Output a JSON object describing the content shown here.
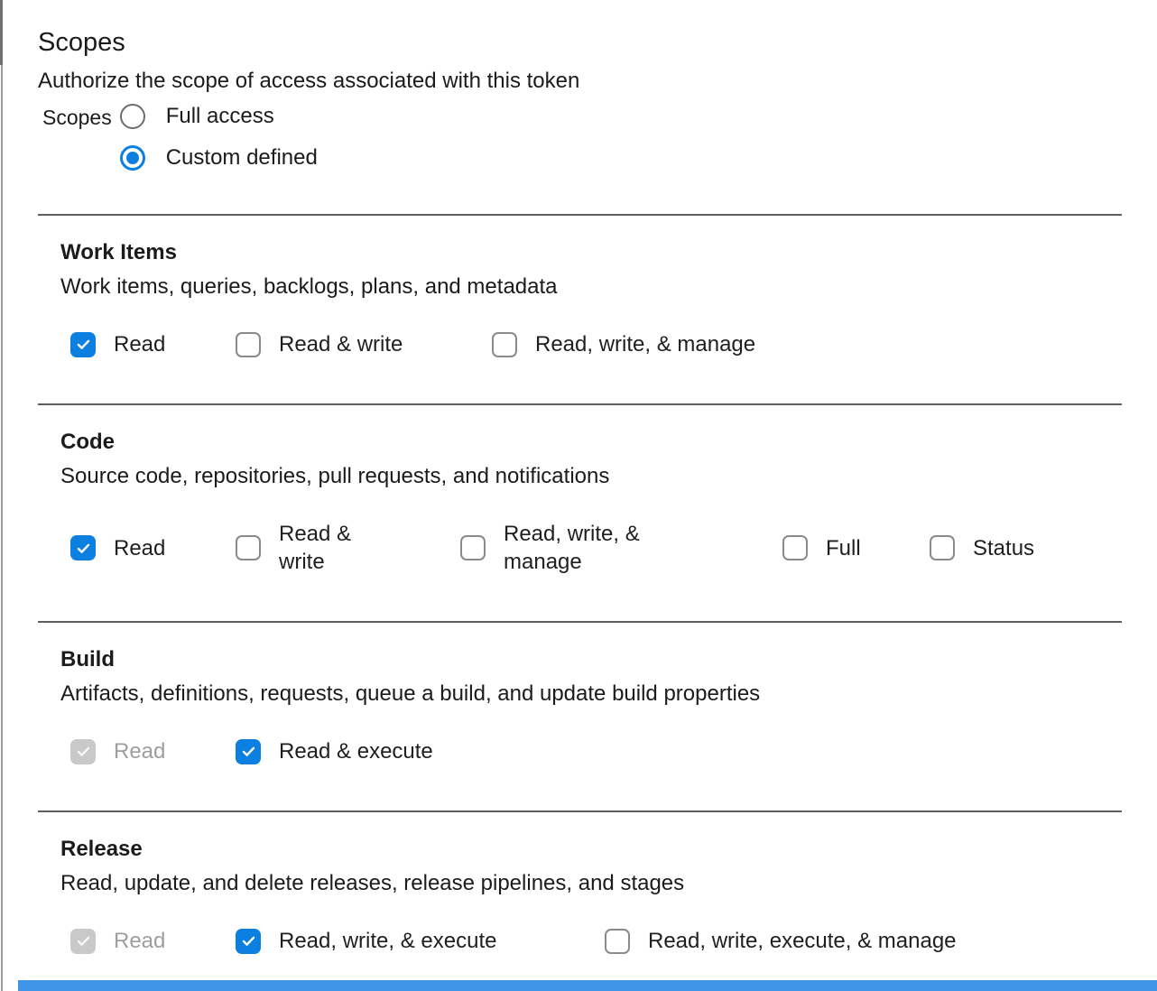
{
  "colors": {
    "accent_blue": "#0b80e0",
    "disabled_gray": "#c9c9c9",
    "divider_gray": "#5f5f5f",
    "bottom_bar_blue": "#3e95e8"
  },
  "header": {
    "title": "Scopes",
    "subtitle": "Authorize the scope of access associated with this token",
    "radio_group_label": "Scopes",
    "radios": [
      {
        "label": "Full access",
        "selected": false
      },
      {
        "label": "Custom defined",
        "selected": true
      }
    ]
  },
  "sections": [
    {
      "title": "Work Items",
      "description": "Work items, queries, backlogs, plans, and metadata",
      "options": [
        {
          "label": "Read",
          "state": "checked"
        },
        {
          "label": "Read & write",
          "state": "unchecked"
        },
        {
          "label": "Read, write, & manage",
          "state": "unchecked"
        }
      ]
    },
    {
      "title": "Code",
      "description": "Source code, repositories, pull requests, and notifications",
      "options": [
        {
          "label": "Read",
          "state": "checked"
        },
        {
          "label": "Read & write",
          "state": "unchecked"
        },
        {
          "label": "Read, write, & manage",
          "state": "unchecked"
        },
        {
          "label": "Full",
          "state": "unchecked"
        },
        {
          "label": "Status",
          "state": "unchecked"
        }
      ]
    },
    {
      "title": "Build",
      "description": "Artifacts, definitions, requests, queue a build, and update build properties",
      "options": [
        {
          "label": "Read",
          "state": "checked_disabled"
        },
        {
          "label": "Read & execute",
          "state": "checked"
        }
      ]
    },
    {
      "title": "Release",
      "description": "Read, update, and delete releases, release pipelines, and stages",
      "options": [
        {
          "label": "Read",
          "state": "checked_disabled"
        },
        {
          "label": "Read, write, & execute",
          "state": "checked"
        },
        {
          "label": "Read, write, execute, & manage",
          "state": "unchecked"
        }
      ]
    }
  ]
}
